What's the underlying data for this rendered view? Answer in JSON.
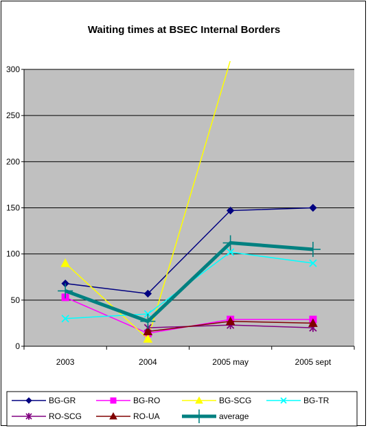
{
  "chart_data": {
    "type": "line",
    "title": "Waiting times at BSEC Internal Borders",
    "xlabel": "",
    "ylabel": "",
    "categories": [
      "2003",
      "2004",
      "2005 may",
      "2005 sept"
    ],
    "ylim": [
      0,
      300
    ],
    "yticks": [
      0,
      50,
      100,
      150,
      200,
      250,
      300
    ],
    "grid": true,
    "legend_placement": "bottom",
    "series": [
      {
        "name": "BG-GR",
        "values": [
          68,
          57,
          147,
          150
        ],
        "color": "#000080",
        "marker": "diamond",
        "width": 1.5
      },
      {
        "name": "BG-RO",
        "values": [
          53,
          14,
          29,
          29
        ],
        "color": "#ff00ff",
        "marker": "square",
        "width": 1.5
      },
      {
        "name": "BG-SCG",
        "values": [
          90,
          8,
          310,
          null
        ],
        "color": "#ffff00",
        "marker": "triangle",
        "width": 1.5
      },
      {
        "name": "BG-TR",
        "values": [
          30,
          35,
          102,
          90
        ],
        "color": "#00ffff",
        "marker": "x",
        "width": 1.5
      },
      {
        "name": "RO-SCG",
        "values": [
          null,
          20,
          23,
          20
        ],
        "color": "#800080",
        "marker": "star",
        "width": 1.5
      },
      {
        "name": "RO-UA",
        "values": [
          null,
          16,
          27,
          25
        ],
        "color": "#800000",
        "marker": "triangle",
        "width": 1.5
      },
      {
        "name": "average",
        "values": [
          60,
          27,
          112,
          105
        ],
        "color": "#008080",
        "marker": "plus",
        "width": 5
      }
    ]
  }
}
